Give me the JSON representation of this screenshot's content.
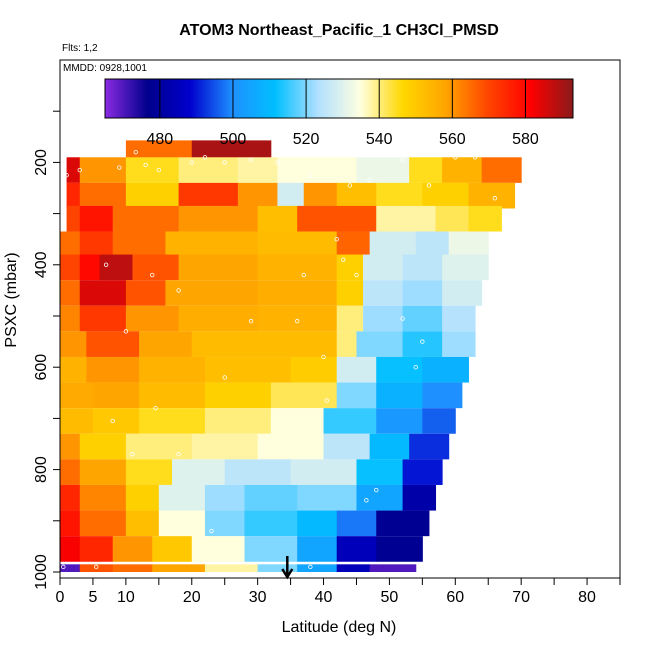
{
  "chart_data": {
    "type": "heatmap",
    "title": "ATOM3 Northeast_Pacific_1 CH3Cl_PMSD",
    "subtitle_flights": "Flts: 1,2",
    "subtitle_dates": "MMDD: 0928,1001",
    "xlabel": "Latitude (deg N)",
    "ylabel": "PSXC (mbar)",
    "xlim": [
      0,
      85
    ],
    "ylim": [
      1000,
      0
    ],
    "x_ticks": [
      0,
      5,
      10,
      20,
      30,
      40,
      50,
      60,
      70,
      80
    ],
    "y_ticks": [
      200,
      400,
      600,
      800,
      1000
    ],
    "colorbar": {
      "range": [
        465,
        593
      ],
      "ticks": [
        480,
        500,
        520,
        540,
        560,
        580
      ],
      "colors": [
        "#8a2be2",
        "#00008b",
        "#0000cd",
        "#1e90ff",
        "#00bfff",
        "#b0e0ff",
        "#ffffe0",
        "#ffd700",
        "#ffa500",
        "#ff4500",
        "#ff0000",
        "#8b1a1a"
      ]
    },
    "marker_latitude": 34.5,
    "bands": [
      {
        "p": 175,
        "segs": [
          [
            10,
            20,
            565
          ],
          [
            20,
            32,
            590
          ]
        ]
      },
      {
        "p": 215,
        "segs": [
          [
            1,
            3,
            585
          ],
          [
            3,
            10,
            560
          ],
          [
            10,
            18,
            545
          ],
          [
            18,
            27,
            540
          ],
          [
            27,
            33,
            538
          ],
          [
            33,
            45,
            535
          ],
          [
            45,
            53,
            532
          ],
          [
            53,
            58,
            545
          ],
          [
            58,
            64,
            555
          ],
          [
            64,
            70,
            565
          ]
        ]
      },
      {
        "p": 265,
        "segs": [
          [
            1,
            3,
            575
          ],
          [
            3,
            10,
            565
          ],
          [
            10,
            18,
            548
          ],
          [
            18,
            27,
            572
          ],
          [
            27,
            33,
            560
          ],
          [
            33,
            37,
            528
          ],
          [
            37,
            42,
            560
          ],
          [
            42,
            48,
            552
          ],
          [
            48,
            55,
            545
          ],
          [
            55,
            62,
            548
          ],
          [
            62,
            69,
            555
          ]
        ]
      },
      {
        "p": 310,
        "segs": [
          [
            1,
            3,
            570
          ],
          [
            3,
            8,
            578
          ],
          [
            8,
            18,
            565
          ],
          [
            18,
            30,
            560
          ],
          [
            30,
            36,
            552
          ],
          [
            36,
            48,
            568
          ],
          [
            48,
            57,
            538
          ],
          [
            57,
            62,
            542
          ],
          [
            62,
            67,
            545
          ]
        ]
      },
      {
        "p": 360,
        "segs": [
          [
            0,
            3,
            565
          ],
          [
            3,
            8,
            572
          ],
          [
            8,
            16,
            565
          ],
          [
            16,
            30,
            555
          ],
          [
            30,
            42,
            553
          ],
          [
            42,
            47,
            566
          ],
          [
            47,
            54,
            528
          ],
          [
            54,
            59,
            525
          ],
          [
            59,
            65,
            532
          ]
        ]
      },
      {
        "p": 405,
        "segs": [
          [
            0,
            3,
            570
          ],
          [
            3,
            6,
            580
          ],
          [
            6,
            11,
            588
          ],
          [
            11,
            18,
            568
          ],
          [
            18,
            30,
            558
          ],
          [
            30,
            42,
            555
          ],
          [
            42,
            46,
            548
          ],
          [
            46,
            52,
            528
          ],
          [
            52,
            58,
            525
          ],
          [
            58,
            65,
            530
          ]
        ]
      },
      {
        "p": 455,
        "segs": [
          [
            0,
            3,
            565
          ],
          [
            3,
            10,
            585
          ],
          [
            10,
            16,
            568
          ],
          [
            16,
            30,
            558
          ],
          [
            30,
            42,
            556
          ],
          [
            42,
            46,
            548
          ],
          [
            46,
            52,
            525
          ],
          [
            52,
            58,
            522
          ],
          [
            58,
            64,
            528
          ]
        ]
      },
      {
        "p": 505,
        "segs": [
          [
            0,
            3,
            562
          ],
          [
            3,
            10,
            572
          ],
          [
            10,
            18,
            560
          ],
          [
            18,
            30,
            556
          ],
          [
            30,
            42,
            555
          ],
          [
            42,
            46,
            540
          ],
          [
            46,
            52,
            522
          ],
          [
            52,
            58,
            518
          ],
          [
            58,
            63,
            524
          ]
        ]
      },
      {
        "p": 555,
        "segs": [
          [
            0,
            4,
            560
          ],
          [
            4,
            12,
            568
          ],
          [
            12,
            20,
            558
          ],
          [
            20,
            32,
            553
          ],
          [
            32,
            42,
            553
          ],
          [
            42,
            45,
            540
          ],
          [
            45,
            52,
            520
          ],
          [
            52,
            58,
            514
          ],
          [
            58,
            63,
            522
          ]
        ]
      },
      {
        "p": 605,
        "segs": [
          [
            0,
            4,
            555
          ],
          [
            4,
            12,
            560
          ],
          [
            12,
            22,
            555
          ],
          [
            22,
            35,
            552
          ],
          [
            35,
            42,
            549
          ],
          [
            42,
            48,
            528
          ],
          [
            48,
            55,
            512
          ],
          [
            55,
            62,
            508
          ]
        ]
      },
      {
        "p": 655,
        "segs": [
          [
            0,
            5,
            557
          ],
          [
            5,
            12,
            558
          ],
          [
            12,
            22,
            553
          ],
          [
            22,
            32,
            548
          ],
          [
            32,
            42,
            542
          ],
          [
            42,
            48,
            520
          ],
          [
            48,
            55,
            508
          ],
          [
            55,
            61,
            500
          ]
        ]
      },
      {
        "p": 705,
        "segs": [
          [
            0,
            5,
            553
          ],
          [
            5,
            12,
            550
          ],
          [
            12,
            22,
            545
          ],
          [
            22,
            32,
            540
          ],
          [
            32,
            40,
            535
          ],
          [
            40,
            48,
            515
          ],
          [
            48,
            55,
            502
          ],
          [
            55,
            60,
            496
          ]
        ]
      },
      {
        "p": 755,
        "segs": [
          [
            0,
            3,
            560
          ],
          [
            3,
            10,
            548
          ],
          [
            10,
            20,
            540
          ],
          [
            20,
            30,
            538
          ],
          [
            30,
            40,
            535
          ],
          [
            40,
            47,
            525
          ],
          [
            47,
            53,
            510
          ],
          [
            53,
            59,
            492
          ]
        ]
      },
      {
        "p": 805,
        "segs": [
          [
            0,
            3,
            565
          ],
          [
            3,
            10,
            558
          ],
          [
            10,
            17,
            545
          ],
          [
            17,
            25,
            530
          ],
          [
            25,
            35,
            525
          ],
          [
            35,
            45,
            528
          ],
          [
            45,
            52,
            512
          ],
          [
            52,
            58,
            490
          ]
        ]
      },
      {
        "p": 855,
        "segs": [
          [
            0,
            3,
            575
          ],
          [
            3,
            10,
            562
          ],
          [
            10,
            15,
            548
          ],
          [
            15,
            22,
            530
          ],
          [
            22,
            28,
            522
          ],
          [
            28,
            36,
            518
          ],
          [
            36,
            45,
            520
          ],
          [
            45,
            52,
            505
          ],
          [
            52,
            57,
            482
          ]
        ]
      },
      {
        "p": 905,
        "segs": [
          [
            0,
            3,
            578
          ],
          [
            3,
            10,
            565
          ],
          [
            10,
            15,
            552
          ],
          [
            15,
            22,
            535
          ],
          [
            22,
            28,
            520
          ],
          [
            28,
            36,
            515
          ],
          [
            36,
            42,
            510
          ],
          [
            42,
            48,
            498
          ],
          [
            48,
            56,
            478
          ]
        ]
      },
      {
        "p": 955,
        "segs": [
          [
            0,
            3,
            582
          ],
          [
            3,
            8,
            575
          ],
          [
            8,
            14,
            560
          ],
          [
            14,
            20,
            550
          ],
          [
            20,
            28,
            535
          ],
          [
            28,
            36,
            520
          ],
          [
            36,
            42,
            505
          ],
          [
            42,
            48,
            485
          ],
          [
            48,
            55,
            478
          ]
        ]
      },
      {
        "p": 995,
        "segs": [
          [
            0,
            3,
            470
          ],
          [
            3,
            8,
            568
          ],
          [
            8,
            14,
            565
          ],
          [
            14,
            22,
            558
          ],
          [
            22,
            30,
            538
          ],
          [
            30,
            36,
            520
          ],
          [
            36,
            42,
            505
          ],
          [
            42,
            47,
            485
          ],
          [
            47,
            54,
            470
          ]
        ]
      }
    ],
    "points": [
      [
        0.5,
        990
      ],
      [
        5.5,
        990
      ],
      [
        38,
        990
      ],
      [
        23,
        920
      ],
      [
        46.5,
        860
      ],
      [
        48,
        840
      ],
      [
        11,
        770
      ],
      [
        18,
        770
      ],
      [
        54,
        600
      ],
      [
        8,
        705
      ],
      [
        14.5,
        680
      ],
      [
        40.5,
        665
      ],
      [
        25,
        620
      ],
      [
        40,
        580
      ],
      [
        55,
        550
      ],
      [
        10,
        530
      ],
      [
        29,
        510
      ],
      [
        36,
        510
      ],
      [
        52,
        505
      ],
      [
        18,
        450
      ],
      [
        37,
        420
      ],
      [
        45,
        420
      ],
      [
        14,
        420
      ],
      [
        7,
        400
      ],
      [
        43,
        390
      ],
      [
        44,
        245
      ],
      [
        38,
        225
      ],
      [
        47,
        235
      ],
      [
        1,
        225
      ],
      [
        3,
        215
      ],
      [
        9,
        210
      ],
      [
        13,
        205
      ],
      [
        20,
        200
      ],
      [
        22,
        190
      ],
      [
        25,
        200
      ],
      [
        33,
        200
      ],
      [
        37,
        180
      ],
      [
        40,
        175
      ],
      [
        52,
        195
      ],
      [
        60,
        190
      ],
      [
        63,
        190
      ],
      [
        11.5,
        180
      ],
      [
        15,
        215
      ],
      [
        29,
        195
      ],
      [
        42,
        350
      ],
      [
        56,
        245
      ],
      [
        66,
        270
      ]
    ]
  }
}
